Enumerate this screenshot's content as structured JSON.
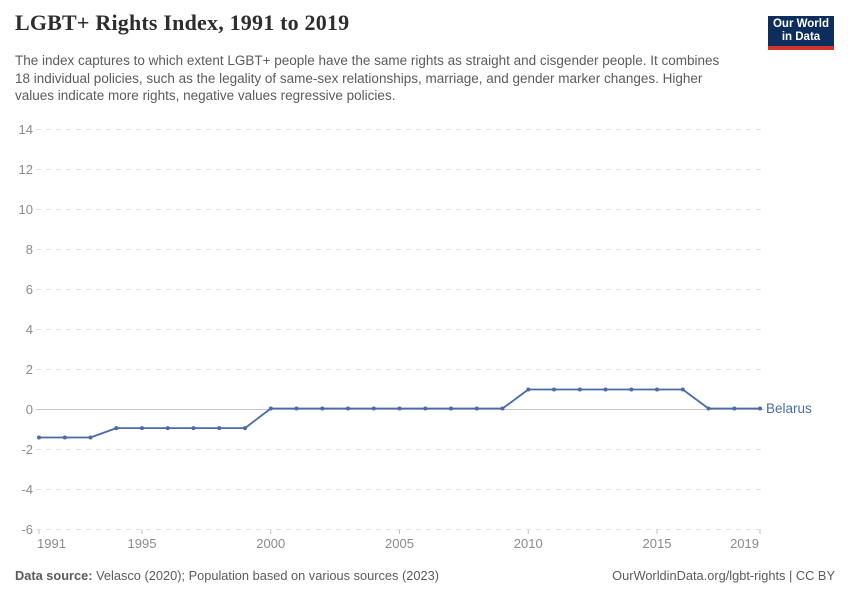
{
  "header": {
    "title": "LGBT+ Rights Index, 1991 to 2019",
    "subtitle": "The index captures to which extent LGBT+ people have the same rights as straight and cisgender people. It combines 18 individual policies, such as the legality of same-sex relationships, marriage, and gender marker changes. Higher values indicate more rights, negative values regressive policies.",
    "logo": {
      "line1": "Our World",
      "line2": "in Data"
    }
  },
  "chart_data": {
    "type": "line",
    "title": "LGBT+ Rights Index, 1991 to 2019",
    "x": [
      1991,
      1992,
      1993,
      1994,
      1995,
      1996,
      1997,
      1998,
      1999,
      2000,
      2001,
      2002,
      2003,
      2004,
      2005,
      2006,
      2007,
      2008,
      2009,
      2010,
      2011,
      2012,
      2013,
      2014,
      2015,
      2016,
      2017,
      2018,
      2019
    ],
    "series": [
      {
        "name": "Belarus",
        "color": "#4b6aa8",
        "values": [
          -1.4,
          -1.4,
          -1.4,
          -0.93,
          -0.93,
          -0.93,
          -0.93,
          -0.93,
          -0.93,
          0.05,
          0.05,
          0.05,
          0.05,
          0.05,
          0.05,
          0.05,
          0.05,
          0.05,
          0.05,
          1,
          1,
          1,
          1,
          1,
          1,
          1,
          0.05,
          0.05,
          0.05
        ]
      }
    ],
    "xlabel": "",
    "ylabel": "",
    "ylim": [
      -6,
      14
    ],
    "yticks": [
      14,
      12,
      10,
      8,
      6,
      4,
      2,
      0,
      -2,
      -4,
      -6
    ],
    "xticks": [
      1991,
      1995,
      2000,
      2005,
      2010,
      2015,
      2019
    ],
    "grid": "horizontal dashed, zero line solid",
    "legend_position": "end-of-line label",
    "marker": "circle",
    "colors": {
      "gridline": "#e2e2e2",
      "zero_line": "#c6c6c6",
      "axis_text": "#8b8b8b",
      "tick_mark": "#c0c0c0"
    }
  },
  "footer": {
    "source_label": "Data source:",
    "source_text": " Velasco (2020); Population based on various sources (2023)",
    "link_text": "OurWorldinData.org/lgbt-rights | CC BY"
  }
}
